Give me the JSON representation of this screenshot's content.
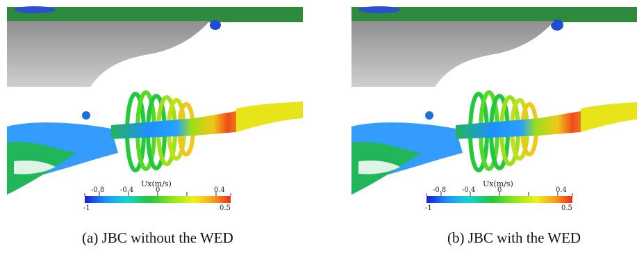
{
  "panels": [
    {
      "caption": "(a)  JBC without the WED",
      "colorbar": {
        "title": "Ux(m/s)",
        "top_ticks": [
          "-0.8",
          "-0.4",
          "0",
          "0.4"
        ],
        "min_label": "-1",
        "max_label": "0.5"
      }
    },
    {
      "caption": "(b) JBC with the WED",
      "colorbar": {
        "title": "Ux(m/s)",
        "top_ticks": [
          "-0.8",
          "-0.4",
          "0",
          "0.4"
        ],
        "min_label": "-1",
        "max_label": "0.5"
      }
    }
  ],
  "colors": {
    "hull": "#a9a9a9",
    "deck": "#2e8b3e",
    "cmap": [
      "#1c1cd4",
      "#1e90ff",
      "#14d4d4",
      "#22c93a",
      "#8ee81a",
      "#f0f01a",
      "#f7a21a",
      "#ee2a1a"
    ]
  }
}
